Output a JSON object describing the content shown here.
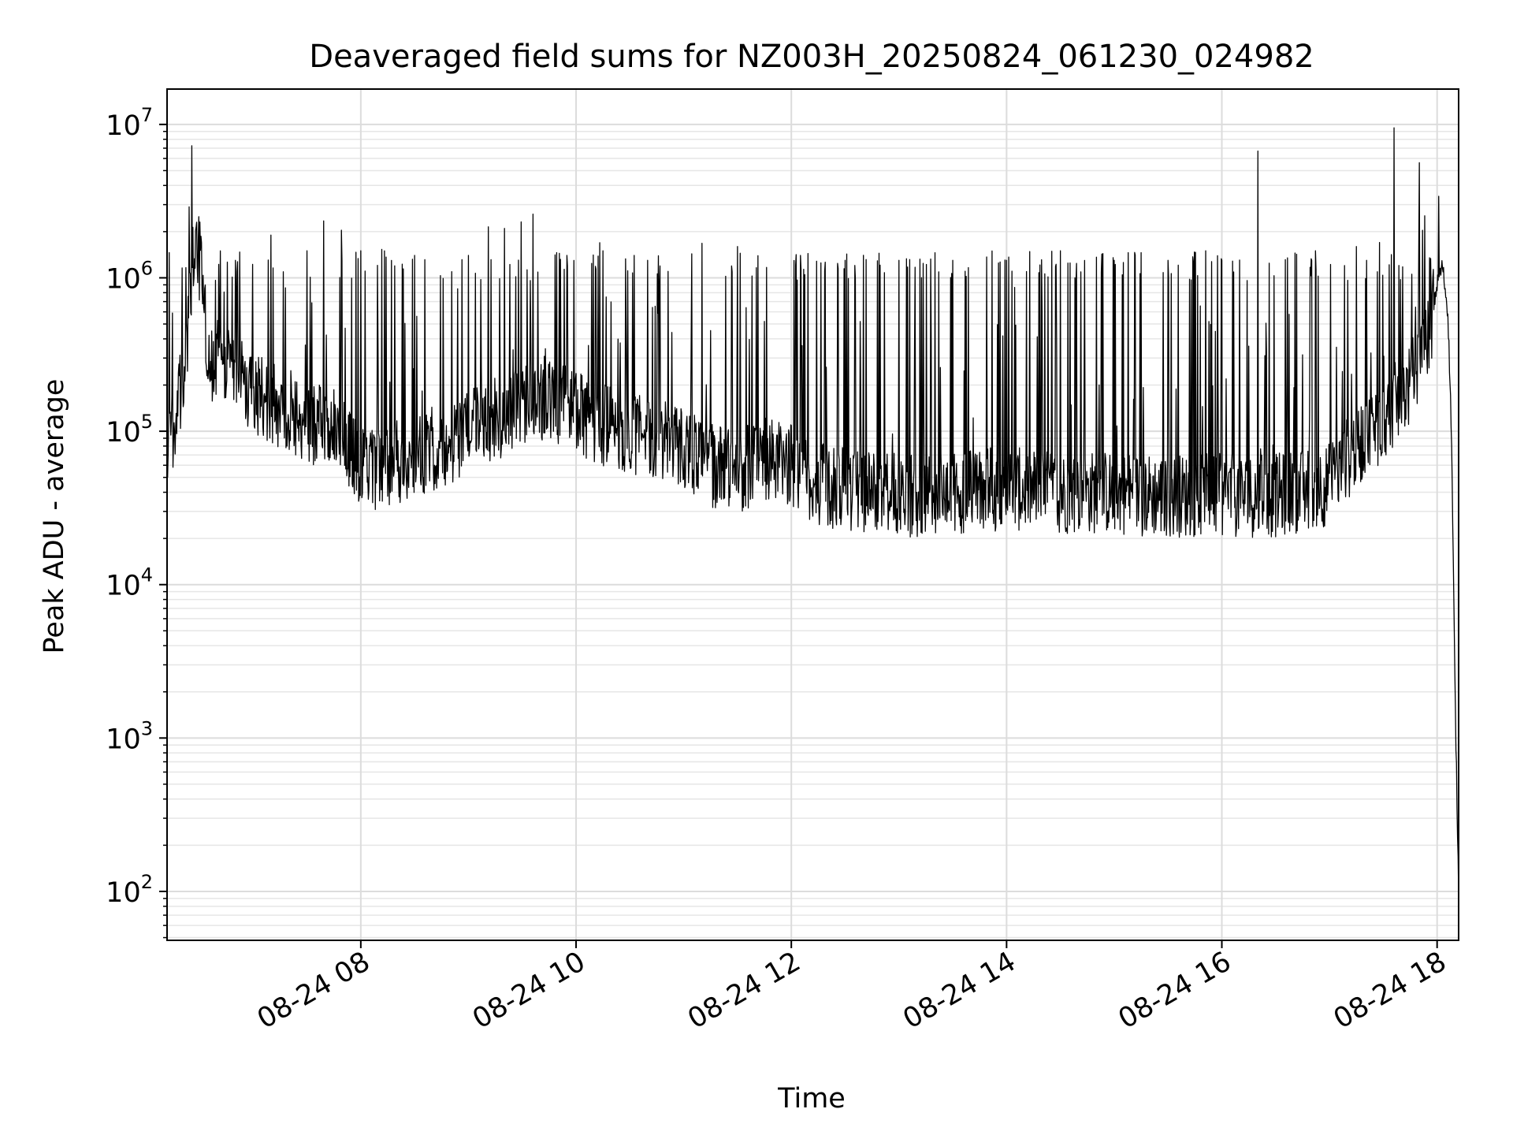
{
  "chart_data": {
    "type": "line",
    "title": "Deaveraged field sums for NZ003H_20250824_061230_024982",
    "xlabel": "Time",
    "ylabel": "Peak ADU - average",
    "x_axis": {
      "kind": "datetime",
      "range": [
        "2025-08-24 06:12",
        "2025-08-24 18:12"
      ],
      "ticks": [
        {
          "value": "2025-08-24 08:00",
          "label": "08-24 08"
        },
        {
          "value": "2025-08-24 10:00",
          "label": "08-24 10"
        },
        {
          "value": "2025-08-24 12:00",
          "label": "08-24 12"
        },
        {
          "value": "2025-08-24 14:00",
          "label": "08-24 14"
        },
        {
          "value": "2025-08-24 16:00",
          "label": "08-24 16"
        },
        {
          "value": "2025-08-24 18:00",
          "label": "08-24 18"
        }
      ]
    },
    "y_axis": {
      "scale": "log",
      "range": [
        48,
        17000000
      ],
      "ticks": [
        {
          "value": 100,
          "base": "10",
          "exp": "2"
        },
        {
          "value": 1000,
          "base": "10",
          "exp": "3"
        },
        {
          "value": 10000,
          "base": "10",
          "exp": "4"
        },
        {
          "value": 100000,
          "base": "10",
          "exp": "5"
        },
        {
          "value": 1000000,
          "base": "10",
          "exp": "6"
        },
        {
          "value": 10000000,
          "base": "10",
          "exp": "7"
        }
      ]
    },
    "grid": true,
    "line_color": "#000000",
    "series": [
      {
        "x": [
          "2025-08-24 06:12",
          "2025-08-24 06:16",
          "2025-08-24 06:20",
          "2025-08-24 06:24",
          "2025-08-24 06:28",
          "2025-08-24 06:32",
          "2025-08-24 06:34",
          "2025-08-24 06:36",
          "2025-08-24 06:38",
          "2025-08-24 06:42",
          "2025-08-24 06:46",
          "2025-08-24 06:50",
          "2025-08-24 06:55",
          "2025-08-24 07:00",
          "2025-08-24 07:10",
          "2025-08-24 07:20",
          "2025-08-24 07:30",
          "2025-08-24 07:40",
          "2025-08-24 07:50",
          "2025-08-24 08:00",
          "2025-08-24 08:15",
          "2025-08-24 08:30",
          "2025-08-24 08:45",
          "2025-08-24 09:00",
          "2025-08-24 09:15",
          "2025-08-24 09:30",
          "2025-08-24 09:45",
          "2025-08-24 10:00",
          "2025-08-24 10:15",
          "2025-08-24 10:30",
          "2025-08-24 10:45",
          "2025-08-24 11:00",
          "2025-08-24 11:15",
          "2025-08-24 11:30",
          "2025-08-24 11:45",
          "2025-08-24 12:00",
          "2025-08-24 12:15",
          "2025-08-24 12:30",
          "2025-08-24 12:45",
          "2025-08-24 13:00",
          "2025-08-24 13:30",
          "2025-08-24 14:00",
          "2025-08-24 14:30",
          "2025-08-24 15:00",
          "2025-08-24 15:30",
          "2025-08-24 16:00",
          "2025-08-24 16:30",
          "2025-08-24 17:00",
          "2025-08-24 17:15",
          "2025-08-24 17:30",
          "2025-08-24 17:45",
          "2025-08-24 17:55",
          "2025-08-24 18:00",
          "2025-08-24 18:03",
          "2025-08-24 18:06",
          "2025-08-24 18:08",
          "2025-08-24 18:10",
          "2025-08-24 18:12"
        ],
        "y": [
          80000,
          110000,
          200000,
          500000,
          2000000,
          900000,
          400000,
          250000,
          300000,
          350000,
          250000,
          220000,
          200000,
          180000,
          150000,
          140000,
          110000,
          120000,
          90000,
          55000,
          60000,
          70000,
          80000,
          100000,
          120000,
          150000,
          170000,
          130000,
          110000,
          100000,
          90000,
          80000,
          60000,
          55000,
          65000,
          60000,
          45000,
          42000,
          40000,
          38000,
          40000,
          42000,
          40000,
          40000,
          38000,
          38000,
          38000,
          45000,
          80000,
          120000,
          200000,
          400000,
          900000,
          1200000,
          600000,
          100000,
          2000,
          100
        ]
      }
    ],
    "spikes": [
      {
        "x": "2025-08-24 06:50",
        "y": 1300000
      },
      {
        "x": "2025-08-24 07:10",
        "y": 1900000
      },
      {
        "x": "2025-08-24 07:30",
        "y": 1500000
      },
      {
        "x": "2025-08-24 08:00",
        "y": 1500000
      },
      {
        "x": "2025-08-24 08:30",
        "y": 1400000
      },
      {
        "x": "2025-08-24 09:00",
        "y": 1400000
      },
      {
        "x": "2025-08-24 09:20",
        "y": 2100000
      },
      {
        "x": "2025-08-24 09:36",
        "y": 2600000
      },
      {
        "x": "2025-08-24 09:55",
        "y": 1400000
      },
      {
        "x": "2025-08-24 10:15",
        "y": 1500000
      },
      {
        "x": "2025-08-24 10:40",
        "y": 1300000
      },
      {
        "x": "2025-08-24 11:30",
        "y": 1600000
      },
      {
        "x": "2025-08-24 12:05",
        "y": 1400000
      },
      {
        "x": "2025-08-24 12:30",
        "y": 1300000
      },
      {
        "x": "2025-08-24 13:00",
        "y": 1300000
      },
      {
        "x": "2025-08-24 13:30",
        "y": 1300000
      },
      {
        "x": "2025-08-24 14:00",
        "y": 1300000
      },
      {
        "x": "2025-08-24 14:30",
        "y": 1500000
      },
      {
        "x": "2025-08-24 15:00",
        "y": 1300000
      },
      {
        "x": "2025-08-24 15:30",
        "y": 1300000
      },
      {
        "x": "2025-08-24 16:00",
        "y": 1300000
      },
      {
        "x": "2025-08-24 16:20",
        "y": 6700000
      },
      {
        "x": "2025-08-24 16:50",
        "y": 1300000
      },
      {
        "x": "2025-08-24 17:15",
        "y": 1600000
      },
      {
        "x": "2025-08-24 17:28",
        "y": 1700000
      },
      {
        "x": "2025-08-24 17:36",
        "y": 9500000
      },
      {
        "x": "2025-08-24 18:01",
        "y": 3400000
      }
    ]
  }
}
